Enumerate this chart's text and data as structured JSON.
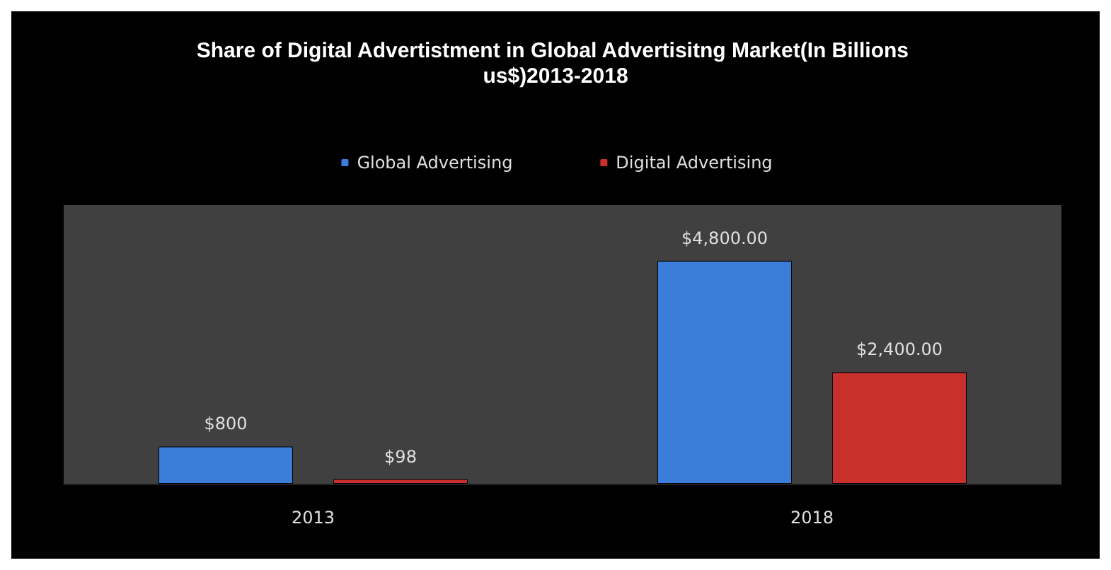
{
  "chart_data": {
    "type": "bar",
    "title": "Share of Digital Advertistment in Global Advertisitng Market(In Billions us$)2013-2018",
    "categories": [
      "2013",
      "2018"
    ],
    "series": [
      {
        "name": "Global Advertising",
        "color": "#3b7dd8",
        "values": [
          800,
          4800
        ],
        "value_labels": [
          "$800",
          "$4,800.00"
        ]
      },
      {
        "name": "Digital Advertising",
        "color": "#c9302c",
        "values": [
          98,
          2400
        ],
        "value_labels": [
          "$98",
          "$2,400.00"
        ]
      }
    ],
    "legend": "top",
    "grid": false,
    "tick_labels": "x"
  }
}
